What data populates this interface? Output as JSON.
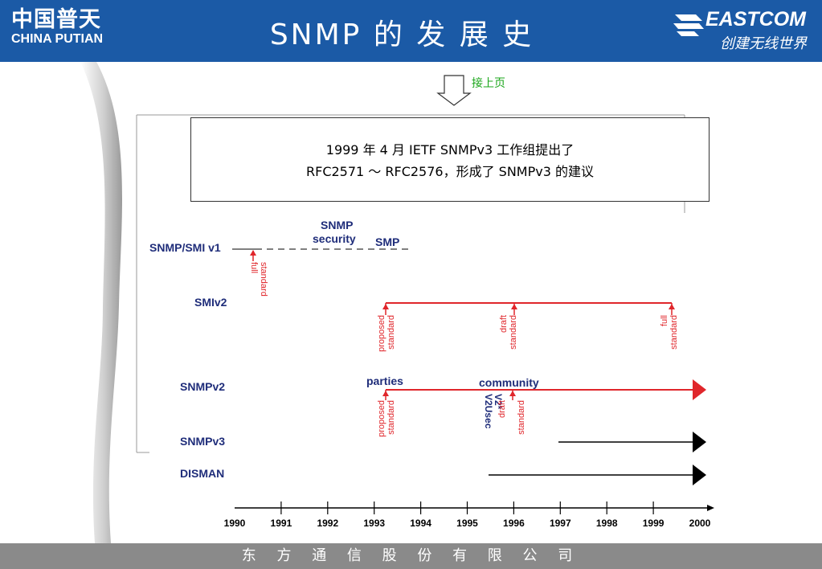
{
  "header": {
    "logo_cn": "中国普天",
    "logo_en": "CHINA PUTIAN",
    "title": "SNMP 的 发 展 史",
    "brand": "EASTCOM",
    "slogan": "创建无线世界"
  },
  "continue_note": "接上页",
  "textbox": {
    "line1": "1999 年 4 月 IETF SNMPv3 工作组提出了",
    "line2": "RFC2571 ～ RFC2576，形成了 SNMPv3 的建议"
  },
  "rows": {
    "smi_v1": "SNMP/SMI v1",
    "smiv2": "SMIv2",
    "snmpv2": "SNMPv2",
    "snmpv3": "SNMPv3",
    "disman": "DISMAN"
  },
  "annotations": {
    "snmp_security_1": "SNMP",
    "snmp_security_2": "security",
    "smp": "SMP",
    "parties": "parties",
    "community": "community",
    "v2usec": "V2Usec",
    "v2star": "V2*",
    "full1": "full",
    "standard": "standard",
    "proposed": "proposed",
    "draft": "draft",
    "full": "full"
  },
  "axis": {
    "years": [
      "1990",
      "1991",
      "1992",
      "1993",
      "1994",
      "1995",
      "1996",
      "1997",
      "1998",
      "1999",
      "2000"
    ]
  },
  "footer": "东 方 通 信 股 份 有 限 公 司",
  "colors": {
    "header_bg": "#1b5aa6",
    "footer_bg": "#8a8a8a",
    "label_navy": "#1f2d7a",
    "milestone_red": "#e0262b",
    "note_green": "#1aa61a"
  }
}
